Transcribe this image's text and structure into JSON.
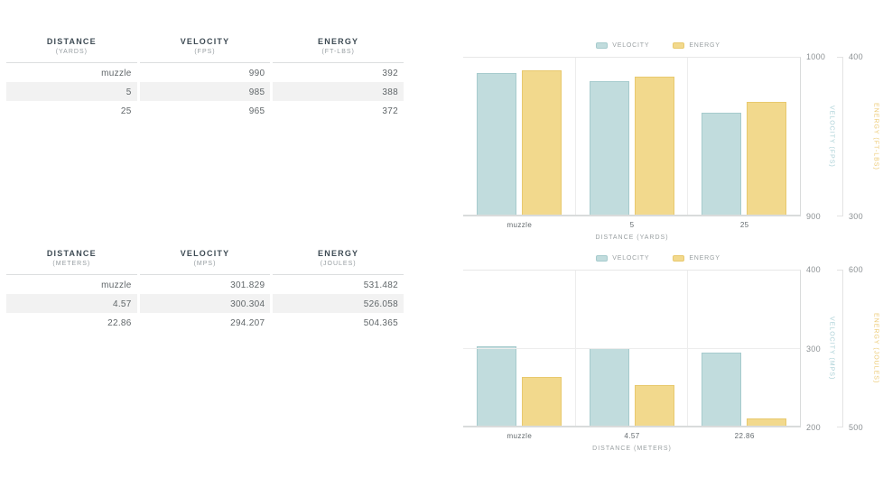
{
  "colors": {
    "velocity": "#c1dcdd",
    "velocity_border": "#a6cbcd",
    "energy": "#f2d98d",
    "energy_border": "#e8c96e",
    "velocity_label": "#aad0d6",
    "energy_label": "#ecca74"
  },
  "tables": [
    {
      "columns": [
        {
          "title": "DISTANCE",
          "subtitle": "(YARDS)"
        },
        {
          "title": "VELOCITY",
          "subtitle": "(FPS)"
        },
        {
          "title": "ENERGY",
          "subtitle": "(FT-LBS)"
        }
      ],
      "rows": [
        [
          "muzzle",
          "990",
          "392"
        ],
        [
          "5",
          "985",
          "388"
        ],
        [
          "25",
          "965",
          "372"
        ]
      ]
    },
    {
      "columns": [
        {
          "title": "DISTANCE",
          "subtitle": "(METERS)"
        },
        {
          "title": "VELOCITY",
          "subtitle": "(MPS)"
        },
        {
          "title": "ENERGY",
          "subtitle": "(JOULES)"
        }
      ],
      "rows": [
        [
          "muzzle",
          "301.829",
          "531.482"
        ],
        [
          "4.57",
          "300.304",
          "526.058"
        ],
        [
          "22.86",
          "294.207",
          "504.365"
        ]
      ]
    }
  ],
  "chart_data": [
    {
      "type": "bar",
      "title": "",
      "categories": [
        "muzzle",
        "5",
        "25"
      ],
      "series": [
        {
          "name": "VELOCITY",
          "axis": "velocity",
          "values": [
            990,
            985,
            965
          ]
        },
        {
          "name": "ENERGY",
          "axis": "energy",
          "values": [
            392,
            388,
            372
          ]
        }
      ],
      "xlabel": "DISTANCE (YARDS)",
      "axes": {
        "velocity": {
          "label": "VELOCITY (FPS)",
          "min": 900,
          "max": 1000,
          "ticks": [
            1000,
            900
          ]
        },
        "energy": {
          "label": "ENERGY (FT-LBS)",
          "min": 300,
          "max": 400,
          "ticks": [
            400,
            300
          ]
        }
      },
      "legend": [
        "VELOCITY",
        "ENERGY"
      ],
      "legend_position": "top center",
      "grid": "vertical category separators, top line"
    },
    {
      "type": "bar",
      "title": "",
      "categories": [
        "muzzle",
        "4.57",
        "22.86"
      ],
      "series": [
        {
          "name": "VELOCITY",
          "axis": "velocity",
          "values": [
            301.829,
            300.304,
            294.207
          ]
        },
        {
          "name": "ENERGY",
          "axis": "energy",
          "values": [
            531.482,
            526.058,
            504.365
          ]
        }
      ],
      "xlabel": "DISTANCE (METERS)",
      "axes": {
        "velocity": {
          "label": "VELOCITY (MPS)",
          "min": 200,
          "max": 400,
          "ticks": [
            400,
            300,
            200
          ]
        },
        "energy": {
          "label": "ENERGY (JOULES)",
          "min": 500,
          "max": 600,
          "ticks": [
            600,
            500
          ]
        }
      },
      "legend": [
        "VELOCITY",
        "ENERGY"
      ],
      "legend_position": "top center",
      "grid": "vertical category separators, top line, middle line"
    }
  ]
}
